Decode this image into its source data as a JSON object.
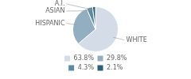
{
  "chart_data": {
    "type": "pie",
    "categories": [
      "WHITE",
      "HISPANIC",
      "ASIAN",
      "A.I."
    ],
    "values": [
      63.8,
      29.8,
      4.3,
      2.1
    ],
    "value_labels": [
      "63.8%",
      "29.8%",
      "4.3%",
      "2.1%"
    ],
    "colors": [
      "#d4dce8",
      "#92afc2",
      "#5b8ba4",
      "#2a5f7a"
    ],
    "legend": "bottom"
  }
}
